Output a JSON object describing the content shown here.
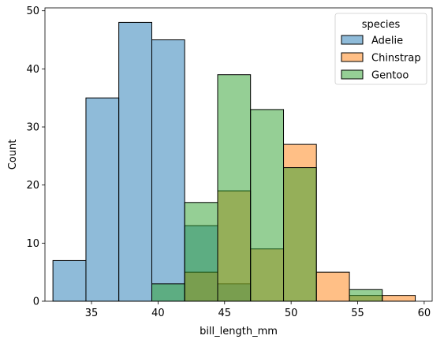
{
  "chart_data": {
    "type": "bar",
    "chart_kind": "histogram",
    "xlabel": "bill_length_mm",
    "ylabel": "Count",
    "xlim": [
      31.5,
      60.6
    ],
    "ylim": [
      0,
      50.5
    ],
    "bin_edges": [
      32.1,
      34.58,
      37.05,
      39.53,
      42.0,
      44.48,
      46.95,
      49.43,
      51.9,
      54.38,
      56.85,
      59.33
    ],
    "xticks": [
      35,
      40,
      45,
      50,
      55,
      60
    ],
    "yticks": [
      0,
      10,
      20,
      30,
      40,
      50
    ],
    "grid": false,
    "alpha": 0.5,
    "legend": {
      "title": "species",
      "placement": "top-right",
      "entries": [
        "Adelie",
        "Chinstrap",
        "Gentoo"
      ]
    },
    "series": [
      {
        "name": "Adelie",
        "color": "#1f77b4",
        "values": [
          7,
          35,
          48,
          45,
          13,
          3,
          0,
          0,
          0,
          0,
          0
        ]
      },
      {
        "name": "Chinstrap",
        "color": "#ff7f0e",
        "values": [
          0,
          0,
          0,
          0,
          5,
          19,
          9,
          27,
          5,
          1,
          1
        ]
      },
      {
        "name": "Gentoo",
        "color": "#2ca02c",
        "values": [
          0,
          0,
          0,
          3,
          17,
          39,
          33,
          23,
          0,
          2,
          0
        ]
      }
    ]
  }
}
